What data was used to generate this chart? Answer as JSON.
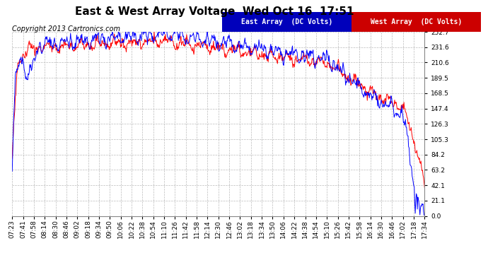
{
  "title": "East & West Array Voltage  Wed Oct 16  17:51",
  "copyright": "Copyright 2013 Cartronics.com",
  "east_label": "East Array  (DC Volts)",
  "west_label": "West Array  (DC Volts)",
  "east_color": "#0000ff",
  "west_color": "#ff0000",
  "east_legend_bg": "#0000bb",
  "west_legend_bg": "#cc0000",
  "bg_color": "#ffffff",
  "plot_bg_color": "#ffffff",
  "grid_color": "#bbbbbb",
  "ylim": [
    0.0,
    252.7
  ],
  "yticks": [
    0.0,
    21.1,
    42.1,
    63.2,
    84.2,
    105.3,
    126.3,
    147.4,
    168.5,
    189.5,
    210.6,
    231.6,
    252.7
  ],
  "xtick_labels": [
    "07:23",
    "07:41",
    "07:58",
    "08:14",
    "08:30",
    "08:46",
    "09:02",
    "09:18",
    "09:34",
    "09:50",
    "10:06",
    "10:22",
    "10:38",
    "10:54",
    "11:10",
    "11:26",
    "11:42",
    "11:58",
    "12:14",
    "12:30",
    "12:46",
    "13:02",
    "13:18",
    "13:34",
    "13:50",
    "14:06",
    "14:22",
    "14:38",
    "14:54",
    "15:10",
    "15:26",
    "15:42",
    "15:58",
    "16:14",
    "16:30",
    "16:46",
    "17:02",
    "17:18",
    "17:34"
  ],
  "title_fontsize": 11,
  "axis_fontsize": 6.5,
  "copyright_fontsize": 7,
  "legend_fontsize": 7,
  "line_width": 0.7,
  "figsize": [
    6.9,
    3.75
  ],
  "dpi": 100
}
